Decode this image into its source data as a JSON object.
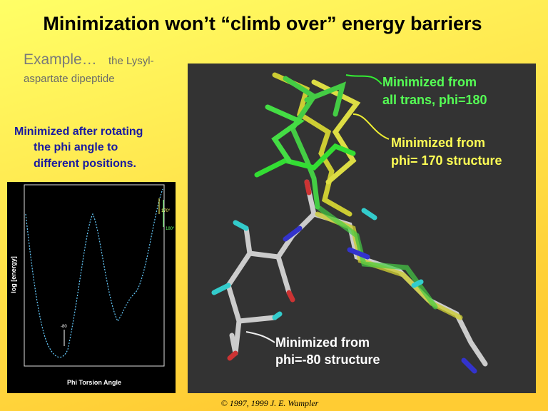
{
  "title": "Minimization won’t “climb over” energy barriers",
  "example": {
    "lead": "Example…",
    "lines": [
      "the Lysyl-",
      "aspartate dipeptide"
    ]
  },
  "caption": [
    "Minimized after rotating",
    "the phi angle to",
    "different positions."
  ],
  "plot": {
    "y_label": "log [energy]",
    "x_label": "Phi Torsion Angle",
    "annotations": [
      "-80",
      "170°",
      "180°"
    ]
  },
  "molecule": {
    "labels": [
      {
        "lines": [
          "Minimized from",
          "all trans, phi=180"
        ]
      },
      {
        "lines": [
          "Minimized from",
          "phi= 170  structure"
        ]
      },
      {
        "lines": [
          "Minimized from",
          "phi=-80 structure"
        ]
      }
    ]
  },
  "footer": "© 1997, 1999 J. E. Wampler"
}
